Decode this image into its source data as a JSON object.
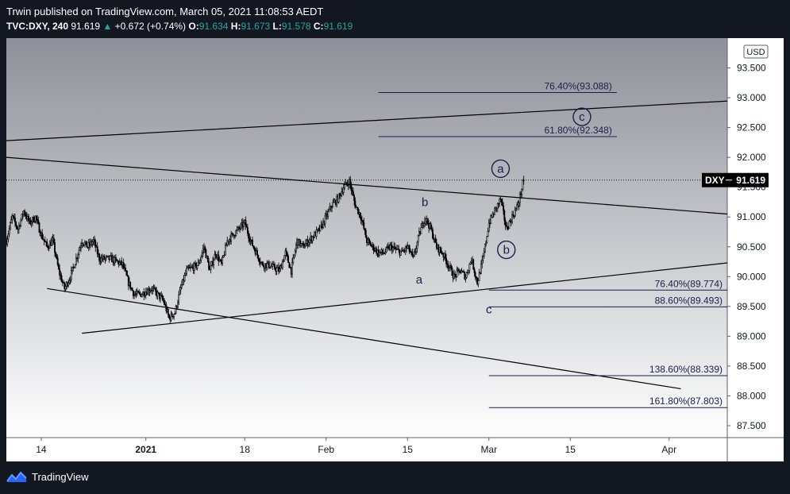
{
  "header": {
    "publisher_line": "Trwin published on TradingView.com, March 05, 2021 11:08:53 AEDT",
    "symbol": "TVC:DXY, 240",
    "last": "91.619",
    "change": "+0.672 (+0.74%)",
    "open_label": "O:",
    "open": "91.634",
    "high_label": "H:",
    "high": "91.673",
    "low_label": "L:",
    "low": "91.578",
    "close_label": "C:",
    "close": "91.619"
  },
  "footer": {
    "brand": "TradingView",
    "logo_icon": "tradingview-logo-icon"
  },
  "colors": {
    "up": "#26a69a",
    "down": "#000000",
    "lines": "#1a1f4a",
    "bg_top": "#8e9099",
    "bg_bottom": "#ffffff"
  },
  "chart_data": {
    "type": "candlestick",
    "currency_badge": "USD",
    "price_tag": {
      "symbol": "DXY",
      "value": 91.619
    },
    "ylim": [
      87.3,
      94.0
    ],
    "xlim": [
      "2020-12-08",
      "2021-04-11"
    ],
    "y_ticks": [
      {
        "v": 93.5,
        "label": "93.500"
      },
      {
        "v": 93.0,
        "label": "93.000"
      },
      {
        "v": 92.5,
        "label": "92.500"
      },
      {
        "v": 92.0,
        "label": "92.000"
      },
      {
        "v": 91.5,
        "label": "91.500"
      },
      {
        "v": 91.0,
        "label": "91.000"
      },
      {
        "v": 90.5,
        "label": "90.500"
      },
      {
        "v": 90.0,
        "label": "90.000"
      },
      {
        "v": 89.5,
        "label": "89.500"
      },
      {
        "v": 89.0,
        "label": "89.000"
      },
      {
        "v": 88.5,
        "label": "88.500"
      },
      {
        "v": 88.0,
        "label": "88.000"
      },
      {
        "v": 87.5,
        "label": "87.500"
      }
    ],
    "x_ticks": [
      {
        "date": "2020-12-14",
        "label": "14"
      },
      {
        "date": "2021-01-01",
        "label": "2021"
      },
      {
        "date": "2021-01-18",
        "label": "18"
      },
      {
        "date": "2021-02-01",
        "label": "Feb"
      },
      {
        "date": "2021-02-15",
        "label": "15"
      },
      {
        "date": "2021-03-01",
        "label": "Mar"
      },
      {
        "date": "2021-03-15",
        "label": "15"
      },
      {
        "date": "2021-04-01",
        "label": "Apr"
      }
    ],
    "price_path": [
      [
        "2020-12-08",
        90.6
      ],
      [
        "2020-12-09",
        91.0
      ],
      [
        "2020-12-10",
        90.8
      ],
      [
        "2020-12-11",
        91.1
      ],
      [
        "2020-12-12",
        90.9
      ],
      [
        "2020-12-13",
        91.0
      ],
      [
        "2020-12-14",
        90.7
      ],
      [
        "2020-12-15",
        90.5
      ],
      [
        "2020-12-16",
        90.6
      ],
      [
        "2020-12-17",
        90.1
      ],
      [
        "2020-12-18",
        89.8
      ],
      [
        "2020-12-19",
        90.0
      ],
      [
        "2020-12-21",
        90.6
      ],
      [
        "2020-12-22",
        90.5
      ],
      [
        "2020-12-23",
        90.6
      ],
      [
        "2020-12-24",
        90.3
      ],
      [
        "2020-12-26",
        90.3
      ],
      [
        "2020-12-28",
        90.2
      ],
      [
        "2020-12-29",
        89.9
      ],
      [
        "2020-12-30",
        89.7
      ],
      [
        "2020-12-31",
        89.7
      ],
      [
        "2021-01-02",
        89.8
      ],
      [
        "2021-01-04",
        89.6
      ],
      [
        "2021-01-05",
        89.3
      ],
      [
        "2021-01-06",
        89.4
      ],
      [
        "2021-01-07",
        89.8
      ],
      [
        "2021-01-08",
        90.1
      ],
      [
        "2021-01-10",
        90.2
      ],
      [
        "2021-01-11",
        90.5
      ],
      [
        "2021-01-12",
        90.1
      ],
      [
        "2021-01-13",
        90.4
      ],
      [
        "2021-01-14",
        90.2
      ],
      [
        "2021-01-15",
        90.6
      ],
      [
        "2021-01-17",
        90.8
      ],
      [
        "2021-01-18",
        90.9
      ],
      [
        "2021-01-19",
        90.6
      ],
      [
        "2021-01-20",
        90.4
      ],
      [
        "2021-01-21",
        90.2
      ],
      [
        "2021-01-22",
        90.2
      ],
      [
        "2021-01-24",
        90.1
      ],
      [
        "2021-01-25",
        90.4
      ],
      [
        "2021-01-26",
        90.1
      ],
      [
        "2021-01-27",
        90.6
      ],
      [
        "2021-01-28",
        90.5
      ],
      [
        "2021-01-29",
        90.6
      ],
      [
        "2021-01-31",
        90.8
      ],
      [
        "2021-02-01",
        91.0
      ],
      [
        "2021-02-02",
        91.2
      ],
      [
        "2021-02-03",
        91.3
      ],
      [
        "2021-02-04",
        91.5
      ],
      [
        "2021-02-05",
        91.6
      ],
      [
        "2021-02-06",
        91.2
      ],
      [
        "2021-02-07",
        91.0
      ],
      [
        "2021-02-08",
        90.6
      ],
      [
        "2021-02-09",
        90.5
      ],
      [
        "2021-02-10",
        90.4
      ],
      [
        "2021-02-11",
        90.4
      ],
      [
        "2021-02-12",
        90.5
      ],
      [
        "2021-02-14",
        90.4
      ],
      [
        "2021-02-15",
        90.5
      ],
      [
        "2021-02-16",
        90.3
      ],
      [
        "2021-02-17",
        90.7
      ],
      [
        "2021-02-18",
        91.0
      ],
      [
        "2021-02-19",
        90.8
      ],
      [
        "2021-02-20",
        90.5
      ],
      [
        "2021-02-21",
        90.4
      ],
      [
        "2021-02-22",
        90.2
      ],
      [
        "2021-02-23",
        90.0
      ],
      [
        "2021-02-24",
        90.1
      ],
      [
        "2021-02-25",
        90.0
      ],
      [
        "2021-02-26",
        90.3
      ],
      [
        "2021-02-27",
        89.9
      ],
      [
        "2021-02-28",
        90.3
      ],
      [
        "2021-03-01",
        90.9
      ],
      [
        "2021-03-02",
        91.1
      ],
      [
        "2021-03-03",
        91.3
      ],
      [
        "2021-03-04",
        90.8
      ],
      [
        "2021-03-05",
        91.0
      ],
      [
        "2021-03-06",
        91.2
      ],
      [
        "2021-03-07",
        91.619
      ]
    ],
    "trendlines": [
      {
        "from": [
          "2020-12-08",
          92.28
        ],
        "to": [
          "2021-04-12",
          92.95
        ]
      },
      {
        "from": [
          "2020-12-08",
          92.0
        ],
        "to": [
          "2021-04-11",
          91.05
        ]
      },
      {
        "from": [
          "2020-12-21",
          89.05
        ],
        "to": [
          "2021-04-11",
          90.23
        ]
      },
      {
        "from": [
          "2020-12-15",
          89.8
        ],
        "to": [
          "2021-04-03",
          88.12
        ]
      }
    ],
    "fib_levels": [
      {
        "label": "76.40%(93.088)",
        "value": 93.088,
        "from": "2021-02-10",
        "to": "2021-03-23"
      },
      {
        "label": "61.80%(92.348)",
        "value": 92.348,
        "from": "2021-02-10",
        "to": "2021-03-23"
      },
      {
        "label": "76.40%(89.774)",
        "value": 89.774,
        "from": "2021-02-29",
        "to": "2021-04-11"
      },
      {
        "label": "88.60%(89.493)",
        "value": 89.493,
        "from": "2021-02-29",
        "to": "2021-04-11"
      },
      {
        "label": "138.60%(88.339)",
        "value": 88.339,
        "from": "2021-02-29",
        "to": "2021-04-11"
      },
      {
        "label": "161.80%(87.803)",
        "value": 87.803,
        "from": "2021-02-29",
        "to": "2021-04-11"
      }
    ],
    "wave_labels": [
      {
        "text": "b",
        "date": "2021-02-18",
        "price": 91.25,
        "circled": false
      },
      {
        "text": "a",
        "date": "2021-02-17",
        "price": 89.95,
        "circled": false
      },
      {
        "text": "c",
        "date": "2021-03-01",
        "price": 89.45,
        "circled": false
      },
      {
        "text": "a",
        "date": "2021-03-03",
        "price": 91.81,
        "circled": true
      },
      {
        "text": "b",
        "date": "2021-03-04",
        "price": 90.45,
        "circled": true
      },
      {
        "text": "c",
        "date": "2021-03-17",
        "price": 92.68,
        "circled": true
      }
    ]
  }
}
